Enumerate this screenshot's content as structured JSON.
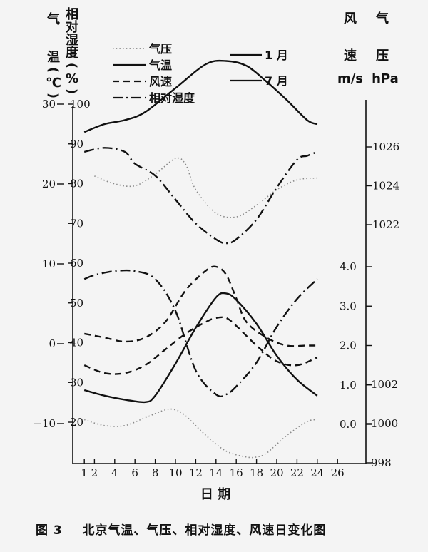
{
  "chart_data": {
    "type": "line",
    "caption": "图 3    北京气温、气压、相对湿度、风速日变化图",
    "xlabel": "日 期",
    "x_ticks": [
      1,
      2,
      4,
      6,
      8,
      10,
      12,
      14,
      16,
      18,
      20,
      22,
      24,
      26
    ],
    "x_range": [
      0,
      27
    ],
    "axes": {
      "temperature": {
        "title_chars": [
          "气",
          "温",
          "(",
          "℃",
          ")"
        ],
        "ticks": [
          30,
          20,
          10,
          0,
          -10
        ]
      },
      "humidity": {
        "title_chars": [
          "相",
          "对",
          "湿",
          "度",
          "(",
          "%",
          ")"
        ],
        "ticks": [
          100,
          90,
          80,
          70,
          60,
          50,
          40,
          30,
          20
        ]
      },
      "wind": {
        "title_chars": [
          "风",
          "速"
        ],
        "unit": "m/s",
        "ticks": [
          "4.0",
          "3.0",
          "2.0",
          "1.0",
          "0.0"
        ]
      },
      "pressure": {
        "title_chars": [
          "气",
          "压"
        ],
        "unit": "hPa",
        "ticks_upper": [
          1026,
          1024,
          1022
        ],
        "ticks_lower": [
          1002,
          1000,
          998
        ]
      }
    },
    "legend": {
      "types": [
        "气压",
        "气温",
        "风速",
        "相对湿度"
      ],
      "months": [
        "1 月",
        "7 月"
      ]
    },
    "series": [
      {
        "name": "7月 气压",
        "type": "pressure",
        "line": "dotted",
        "x": [
          2,
          4,
          6,
          8,
          10,
          11,
          12,
          14,
          16,
          18,
          20,
          22,
          24
        ],
        "y": [
          1024.5,
          1024.1,
          1024.0,
          1024.6,
          1025.4,
          1025.1,
          1023.8,
          1022.6,
          1022.4,
          1023.0,
          1023.8,
          1024.3,
          1024.4
        ]
      },
      {
        "name": "7月 气温",
        "type": "temperature",
        "line": "solid",
        "x": [
          1,
          3,
          5,
          7,
          10,
          13,
          15,
          17,
          19,
          21,
          23,
          24
        ],
        "y": [
          26.5,
          27.5,
          28,
          29,
          32,
          35,
          35.4,
          34.8,
          32.8,
          30.5,
          28,
          27.5
        ]
      },
      {
        "name": "7月 相对湿度",
        "type": "humidity",
        "line": "dashdot",
        "x": [
          1,
          3,
          5,
          6,
          8,
          10,
          12,
          14,
          15,
          16,
          18,
          20,
          22,
          23,
          24
        ],
        "y": [
          88,
          89,
          88,
          85,
          82,
          76,
          70,
          66,
          65,
          66,
          71,
          79,
          86,
          87,
          88
        ]
      },
      {
        "name": "1月 气压",
        "type": "pressure",
        "line": "dotted",
        "x": [
          1,
          3,
          5,
          7,
          9,
          10,
          11,
          13,
          15,
          17,
          18,
          19,
          21,
          23,
          24
        ],
        "y": [
          1000.2,
          999.9,
          999.9,
          1000.3,
          1000.7,
          1000.7,
          1000.4,
          999.4,
          998.6,
          998.3,
          998.3,
          998.5,
          999.4,
          1000.1,
          1000.2
        ]
      },
      {
        "name": "1月 气温",
        "type": "temperature",
        "line": "solid",
        "x": [
          1,
          3,
          5,
          7,
          8,
          10,
          12,
          14,
          15,
          16,
          18,
          20,
          22,
          24
        ],
        "y": [
          -5.8,
          -6.5,
          -7,
          -7.3,
          -6.5,
          -2.5,
          2,
          5.8,
          6.3,
          5.5,
          2.5,
          -1.5,
          -4.5,
          -6.5
        ]
      },
      {
        "name": "1月 风速",
        "type": "wind",
        "line": "dashed",
        "x": [
          1,
          3,
          5,
          7,
          9,
          11,
          13,
          14,
          15,
          16,
          18,
          20,
          22,
          24
        ],
        "y": [
          1.5,
          1.3,
          1.3,
          1.5,
          1.9,
          2.3,
          2.6,
          2.7,
          2.7,
          2.5,
          2.0,
          1.6,
          1.5,
          1.7
        ]
      },
      {
        "name": "7月 风速",
        "type": "wind",
        "line": "dashed",
        "x": [
          1,
          3,
          5,
          7,
          9,
          11,
          13,
          14,
          15,
          16,
          17,
          19,
          21,
          23,
          24
        ],
        "y": [
          2.3,
          2.2,
          2.1,
          2.2,
          2.6,
          3.4,
          3.9,
          4.0,
          3.8,
          3.2,
          2.6,
          2.2,
          2.0,
          2.0,
          2.0
        ]
      },
      {
        "name": "1月 相对湿度",
        "type": "humidity",
        "line": "dashdot",
        "x": [
          1,
          2,
          4,
          6,
          8,
          10,
          12,
          14,
          15,
          16,
          18,
          20,
          22,
          24
        ],
        "y": [
          56,
          57,
          58,
          58,
          56,
          48,
          33,
          27,
          27,
          29,
          35,
          44,
          51,
          56
        ]
      }
    ]
  }
}
